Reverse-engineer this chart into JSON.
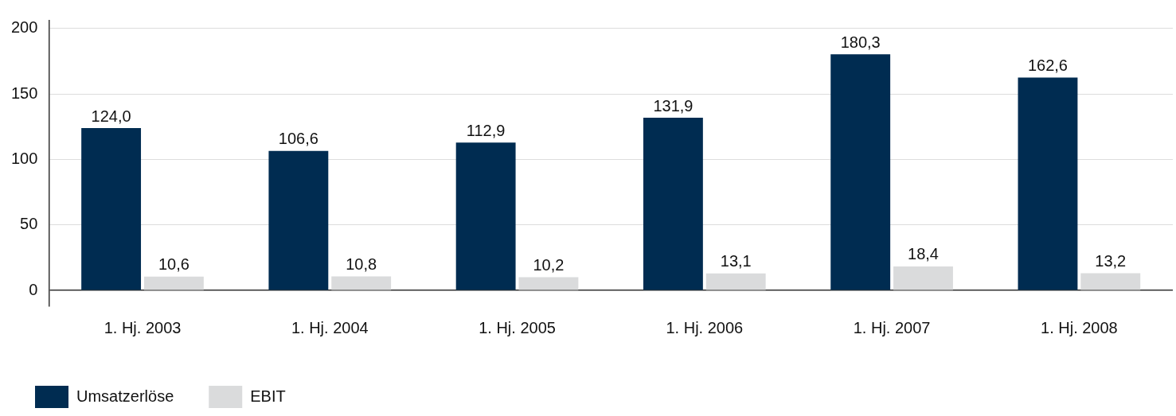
{
  "chart_data": {
    "type": "bar",
    "categories": [
      "1. Hj. 2003",
      "1. Hj. 2004",
      "1. Hj. 2005",
      "1. Hj. 2006",
      "1. Hj. 2007",
      "1. Hj. 2008"
    ],
    "series": [
      {
        "name": "Umsatzerlöse",
        "color": "#002c51",
        "values": [
          124.0,
          106.6,
          112.9,
          131.9,
          180.3,
          162.6
        ],
        "value_labels": [
          "124,0",
          "106,6",
          "112,9",
          "131,9",
          "180,3",
          "162,6"
        ]
      },
      {
        "name": "EBIT",
        "color": "#dadbdc",
        "values": [
          10.6,
          10.8,
          10.2,
          13.1,
          18.4,
          13.2
        ],
        "value_labels": [
          "10,6",
          "10,8",
          "10,2",
          "13,1",
          "18,4",
          "13,2"
        ]
      }
    ],
    "ylim": [
      -12,
      206
    ],
    "yticks": [
      0,
      50,
      100,
      150,
      200
    ],
    "grid": "y",
    "legend": "bottom left"
  }
}
